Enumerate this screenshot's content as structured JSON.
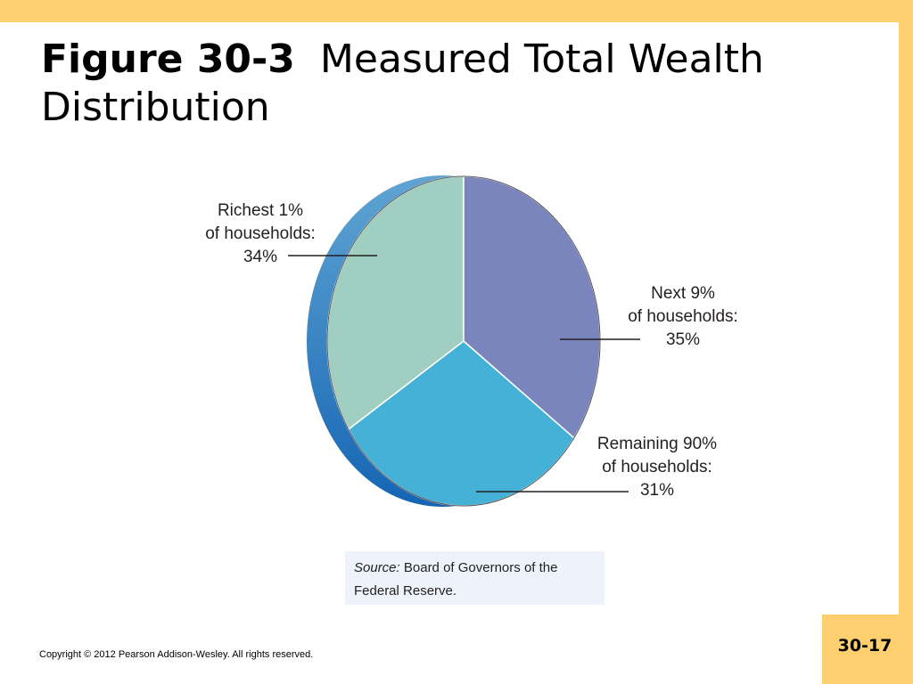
{
  "slide": {
    "title_bold": "Figure 30-3",
    "title_rest": "Measured Total Wealth Distribution",
    "page_number": "30-17",
    "copyright": "Copyright © 2012 Pearson Addison-Wesley. All rights reserved.",
    "source_label": "Source:",
    "source_text": "Board of Governors of the Federal Reserve.",
    "accent_color": "#fdcf6e"
  },
  "chart_data": {
    "type": "pie",
    "title": "",
    "slices": [
      {
        "label_lines": [
          "Richest 1%",
          "of households:",
          "34%"
        ],
        "value": 34,
        "color": "#a0cfc2"
      },
      {
        "label_lines": [
          "Next 9%",
          "of households:",
          "35%"
        ],
        "value": 35,
        "color": "#7b85bd"
      },
      {
        "label_lines": [
          "Remaining 90%",
          "of households:",
          "31%"
        ],
        "value": 31,
        "color": "#46b1d7"
      }
    ],
    "style": "3d-tilted"
  }
}
